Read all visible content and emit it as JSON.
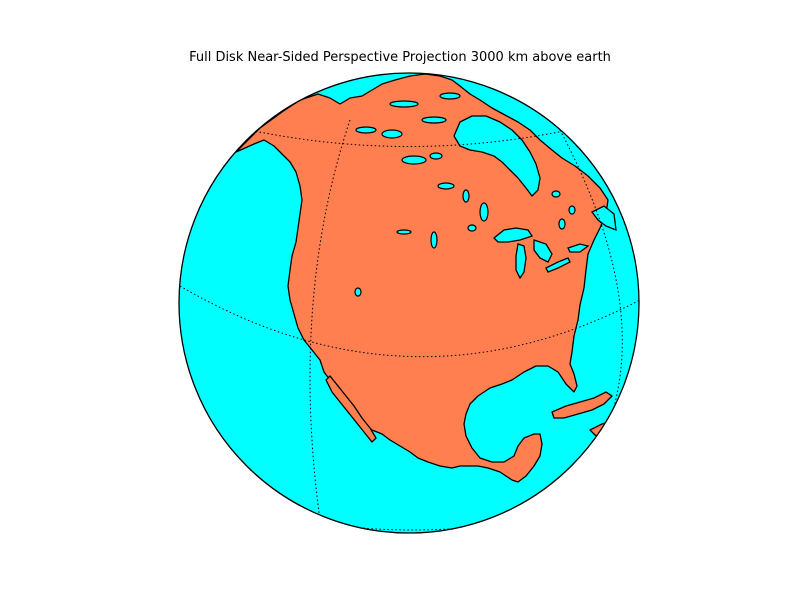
{
  "figure": {
    "title": "Full Disk Near-Sided Perspective Projection 3000 km above earth"
  },
  "map": {
    "projection": "near-sided perspective",
    "altitude": "3000 km",
    "colors": {
      "ocean": "#00ffff",
      "land": "#ff7f50",
      "lakes": "#00ffff",
      "coastline": "#000000",
      "graticule": "#000000",
      "background": "#ffffff"
    },
    "graticule_style": "dotted"
  }
}
